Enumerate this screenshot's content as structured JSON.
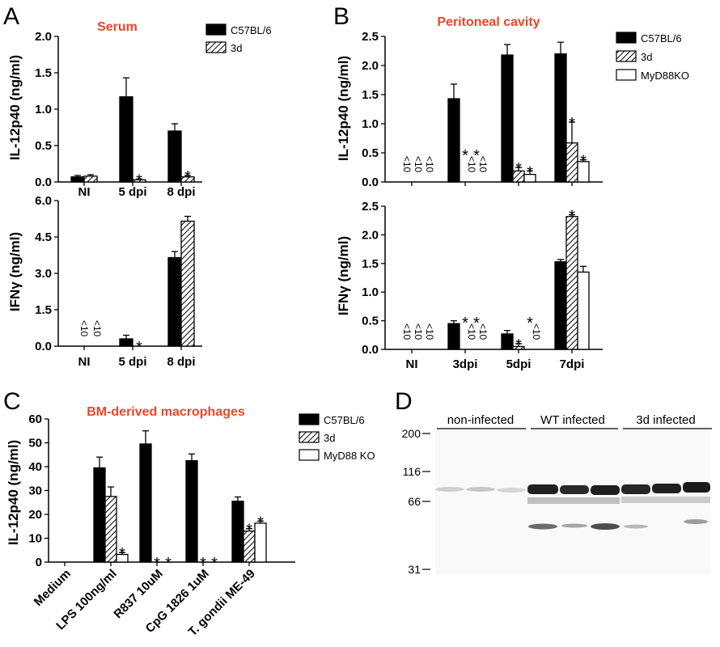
{
  "panel_labels": [
    "A",
    "B",
    "C",
    "D"
  ],
  "colors": {
    "title": "#e8472a",
    "c57": "#000000",
    "d3": "hatched",
    "myd88": "#ffffff"
  },
  "chart_data": [
    {
      "id": "A-top",
      "type": "bar",
      "title": "Serum",
      "ylabel": "IL-12p40 (ng/ml)",
      "ylim": [
        0,
        2.0
      ],
      "yticks": [
        "0.0",
        "0.5",
        "1.0",
        "1.5",
        "2.0"
      ],
      "categories": [
        "NI",
        "5 dpi",
        "8 dpi"
      ],
      "series": [
        {
          "name": "C57BL/6",
          "values": [
            0.07,
            1.17,
            0.7
          ],
          "err": [
            0.02,
            0.26,
            0.1
          ]
        },
        {
          "name": "3d",
          "values": [
            0.08,
            0.03,
            0.07
          ],
          "err": [
            0.02,
            0.01,
            0.02
          ]
        }
      ],
      "legend": "top-right",
      "stars": [
        [
          1,
          1
        ],
        [
          2,
          1
        ]
      ]
    },
    {
      "id": "A-bottom",
      "type": "bar",
      "ylabel": "IFNγ (ng/ml)",
      "ylim": [
        0,
        6.0
      ],
      "yticks": [
        "0.0",
        "1.5",
        "3.0",
        "4.5",
        "6.0"
      ],
      "categories": [
        "NI",
        "5 dpi",
        "8 dpi"
      ],
      "series": [
        {
          "name": "C57BL/6",
          "values": [
            0,
            0.3,
            3.65
          ],
          "err": [
            0,
            0.15,
            0.25
          ]
        },
        {
          "name": "3d",
          "values": [
            0,
            0,
            5.15
          ],
          "err": [
            0,
            0,
            0.2
          ]
        }
      ],
      "below_detection": [
        [
          0,
          0
        ],
        [
          0,
          1
        ]
      ],
      "below_text": "<10",
      "stars": [
        [
          1,
          1
        ]
      ]
    },
    {
      "id": "B-top",
      "type": "bar",
      "title": "Peritoneal cavity",
      "ylabel": "IL-12p40 (ng/ml)",
      "ylim": [
        0,
        2.5
      ],
      "yticks": [
        "0.0",
        "0.5",
        "1.0",
        "1.5",
        "2.0",
        "2.5"
      ],
      "categories": [
        "NI",
        "3dpi",
        "5dpi",
        "7dpi"
      ],
      "series": [
        {
          "name": "C57BL/6",
          "values": [
            0,
            1.43,
            2.18,
            2.2
          ],
          "err": [
            0,
            0.25,
            0.18,
            0.2
          ]
        },
        {
          "name": "3d",
          "values": [
            0,
            0,
            0.19,
            0.67
          ],
          "err": [
            0,
            0,
            0.06,
            0.36
          ]
        },
        {
          "name": "MyD88KO",
          "values": [
            0,
            0,
            0.13,
            0.35
          ],
          "err": [
            0,
            0,
            0.06,
            0.03
          ]
        }
      ],
      "legend": "top-right",
      "below_detection": [
        [
          0,
          0
        ],
        [
          0,
          1
        ],
        [
          0,
          2
        ],
        [
          1,
          1
        ],
        [
          1,
          2
        ]
      ],
      "below_text": "<10",
      "stars": [
        [
          1,
          1
        ],
        [
          1,
          2
        ],
        [
          2,
          1
        ],
        [
          2,
          2
        ],
        [
          3,
          1
        ],
        [
          3,
          2
        ]
      ]
    },
    {
      "id": "B-bottom",
      "type": "bar",
      "ylabel": "IFNγ (ng/ml)",
      "ylim": [
        0,
        2.5
      ],
      "yticks": [
        "0.0",
        "0.5",
        "1.0",
        "1.5",
        "2.0",
        "2.5"
      ],
      "categories": [
        "NI",
        "3dpi",
        "5dpi",
        "7dpi"
      ],
      "series": [
        {
          "name": "C57BL/6",
          "values": [
            0,
            0.45,
            0.27,
            1.53
          ],
          "err": [
            0,
            0.05,
            0.06,
            0.04
          ]
        },
        {
          "name": "3d",
          "values": [
            0,
            0,
            0.05,
            2.32
          ],
          "err": [
            0,
            0,
            0.05,
            0.03
          ]
        },
        {
          "name": "MyD88KO",
          "values": [
            0,
            0,
            0,
            1.35
          ],
          "err": [
            0,
            0,
            0,
            0.1
          ]
        }
      ],
      "below_detection": [
        [
          0,
          0
        ],
        [
          0,
          1
        ],
        [
          0,
          2
        ],
        [
          1,
          1
        ],
        [
          1,
          2
        ],
        [
          2,
          2
        ]
      ],
      "below_text": "<10",
      "stars": [
        [
          1,
          1
        ],
        [
          1,
          2
        ],
        [
          2,
          1
        ],
        [
          2,
          2
        ],
        [
          3,
          1
        ]
      ]
    },
    {
      "id": "C",
      "type": "bar",
      "title": "BM-derived macrophages",
      "ylabel": "IL-12p40 (ng/ml)",
      "ylim": [
        0,
        60
      ],
      "yticks": [
        "0",
        "10",
        "20",
        "30",
        "40",
        "50",
        "60"
      ],
      "categories": [
        "Medium",
        "LPS 100ng/ml",
        "R837 10uM",
        "CpG 1826 1uM",
        "T. gondii ME-49"
      ],
      "series": [
        {
          "name": "C57BL/6",
          "values": [
            0,
            39.5,
            49.5,
            42.5,
            25.5
          ],
          "err": [
            0,
            4.5,
            5.5,
            2.8,
            1.8
          ]
        },
        {
          "name": "3d",
          "values": [
            0,
            27.5,
            0,
            0,
            13
          ],
          "err": [
            0,
            4,
            0,
            0,
            1
          ]
        },
        {
          "name": "MyD88 KO",
          "values": [
            0,
            3.2,
            0,
            0,
            16.3
          ],
          "err": [
            0,
            0.8,
            0,
            0,
            0.9
          ]
        }
      ],
      "legend": "top-right",
      "stars": [
        [
          1,
          2
        ],
        [
          2,
          1
        ],
        [
          2,
          2
        ],
        [
          3,
          1
        ],
        [
          3,
          2
        ],
        [
          4,
          1
        ],
        [
          4,
          2
        ]
      ]
    }
  ],
  "blot": {
    "groups": [
      "non-infected",
      "WT infected",
      "3d infected"
    ],
    "markers": [
      "200",
      "116",
      "66",
      "31"
    ]
  }
}
